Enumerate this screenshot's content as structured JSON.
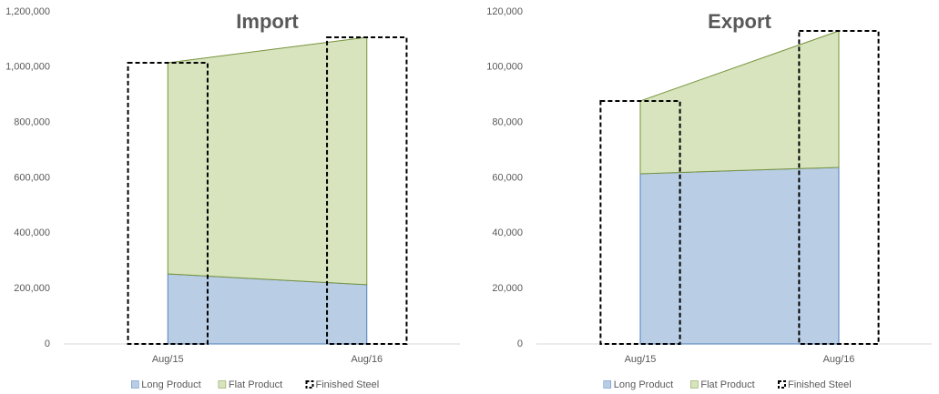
{
  "chart_data": [
    {
      "type": "area",
      "title": "Import",
      "categories": [
        "Aug/15",
        "Aug/16"
      ],
      "series": [
        {
          "name": "Long Product",
          "color": "#b9cde5",
          "line_color": "#4f81bd",
          "values": [
            253000,
            214000
          ]
        },
        {
          "name": "Flat Product",
          "color": "#d7e4bd",
          "line_color": "#77933c",
          "values": [
            763000,
            894000
          ]
        },
        {
          "name": "Finished Steel",
          "type": "bar",
          "color": "#000000",
          "dashed": true,
          "values": [
            1016000,
            1108000
          ]
        }
      ],
      "ylim": [
        0,
        1200000
      ],
      "yticks": [
        0,
        {
          "value": 200000,
          "label": "200,000"
        },
        {
          "value": 400000,
          "label": "400,000"
        },
        {
          "value": 600000,
          "label": "600,000"
        },
        {
          "value": 800000,
          "label": "800,000"
        },
        {
          "value": 1000000,
          "label": "1,000,000"
        },
        {
          "value": 1200000,
          "label": "1,200,000"
        }
      ],
      "legend": "bottom"
    },
    {
      "type": "area",
      "title": "Export",
      "categories": [
        "Aug/15",
        "Aug/16"
      ],
      "series": [
        {
          "name": "Long Product",
          "color": "#b9cde5",
          "line_color": "#4f81bd",
          "values": [
            61500,
            63800
          ]
        },
        {
          "name": "Flat Product",
          "color": "#d7e4bd",
          "line_color": "#77933c",
          "values": [
            26300,
            49300
          ]
        },
        {
          "name": "Finished Steel",
          "type": "bar",
          "color": "#000000",
          "dashed": true,
          "values": [
            87800,
            113100
          ]
        }
      ],
      "ylim": [
        0,
        120000
      ],
      "yticks": [
        0,
        {
          "value": 20000,
          "label": "20,000"
        },
        {
          "value": 40000,
          "label": "40,000"
        },
        {
          "value": 60000,
          "label": "60,000"
        },
        {
          "value": 80000,
          "label": "80,000"
        },
        {
          "value": 100000,
          "label": "100,000"
        },
        {
          "value": 120000,
          "label": "120,000"
        }
      ],
      "legend": "bottom"
    }
  ]
}
